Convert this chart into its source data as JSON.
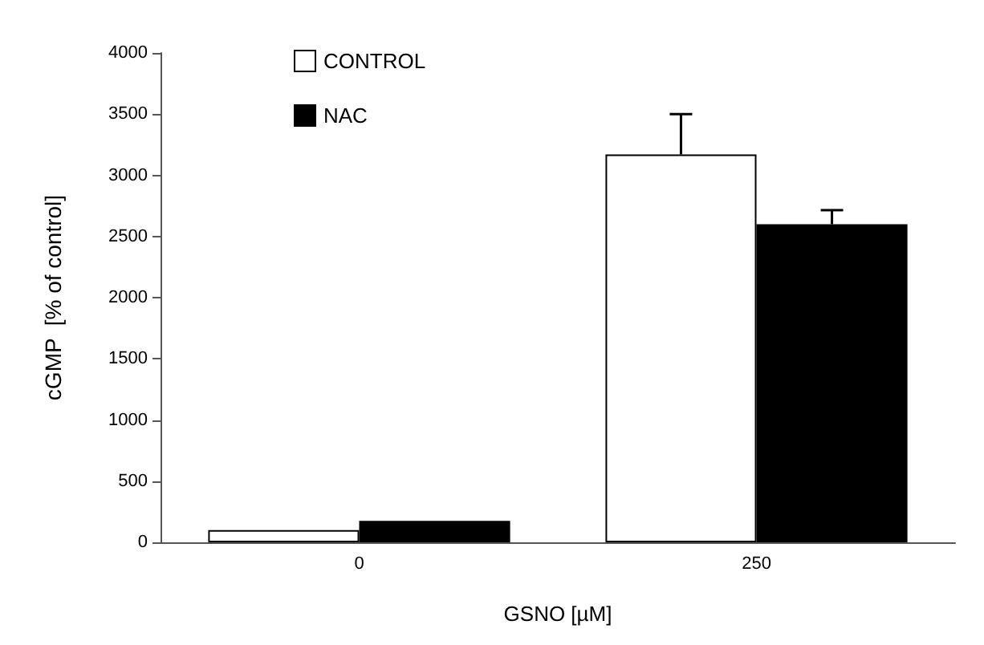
{
  "chart_data": {
    "type": "bar",
    "xlabel": "GSNO [µM]",
    "ylabel": "cGMP  [% of control]",
    "categories": [
      "0",
      "250"
    ],
    "series": [
      {
        "name": "CONTROL",
        "color": "#ffffff",
        "values": [
          100,
          3170
        ],
        "errors": [
          null,
          330
        ]
      },
      {
        "name": "NAC",
        "color": "#000000",
        "values": [
          175,
          2600
        ],
        "errors": [
          null,
          115
        ]
      }
    ],
    "ylim": [
      0,
      4000
    ],
    "yticks": [
      0,
      500,
      1000,
      1500,
      2000,
      2500,
      3000,
      3500,
      4000
    ],
    "grid": false,
    "legend": "top left"
  }
}
